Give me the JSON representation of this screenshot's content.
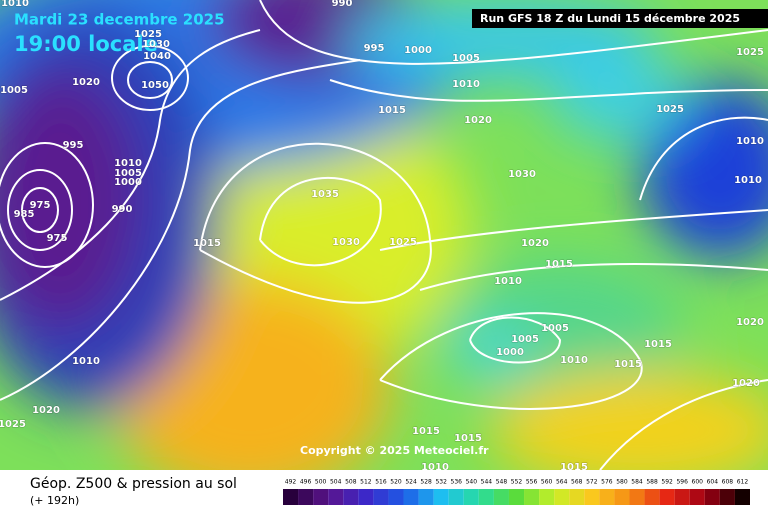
{
  "header": {
    "date": "Mardi 23 decembre 2025",
    "time": "19:00 locale",
    "run": "Run GFS 18 Z du Lundi 15 décembre 2025"
  },
  "map": {
    "copyright": "Copyright © 2025 Meteociel.fr",
    "isobar_labels": [
      1010,
      990,
      1005,
      1025,
      1030,
      1040,
      1050,
      1020,
      995,
      1010,
      1005,
      1000,
      990,
      975,
      985,
      975,
      995,
      1000,
      1005,
      1010,
      1015,
      1020,
      1025,
      1025,
      1010,
      1010,
      1035,
      1030,
      1015,
      1030,
      1025,
      1020,
      1015,
      1010,
      1005,
      1005,
      1000,
      1010,
      1015,
      1015,
      1020,
      1020,
      1010,
      1020,
      1025,
      1015,
      1015,
      1010,
      1015
    ]
  },
  "footer": {
    "title": "Géop. Z500 & pression au sol",
    "lead": "(+ 192h)",
    "scale": [
      492,
      496,
      500,
      504,
      508,
      512,
      516,
      520,
      524,
      528,
      532,
      536,
      540,
      544,
      548,
      552,
      556,
      560,
      564,
      568,
      572,
      576,
      580,
      584,
      588,
      592,
      596,
      600,
      604,
      608,
      612
    ]
  }
}
